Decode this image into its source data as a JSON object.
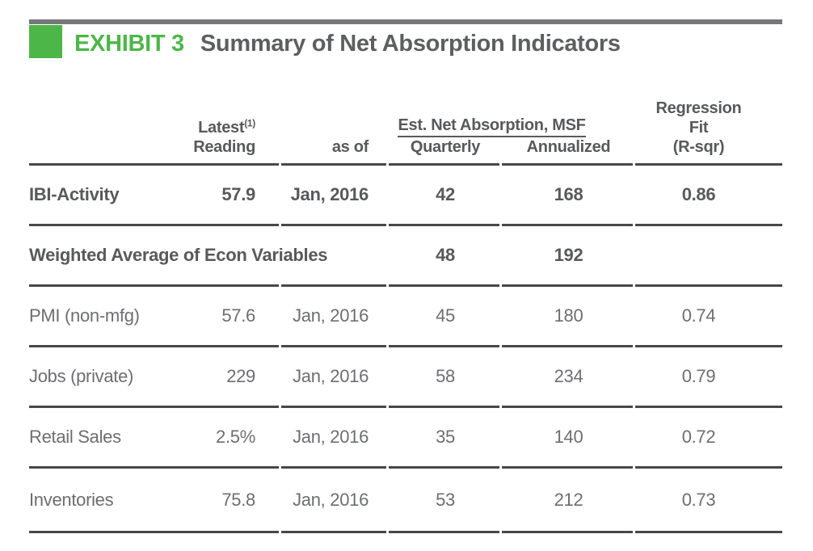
{
  "exhibit": {
    "label": "EXHIBIT 3",
    "title": "Summary of Net Absorption Indicators"
  },
  "colors": {
    "accent_green": "#4cb748",
    "title_gray": "#5d5e60",
    "bold_text_gray": "#58595b",
    "regular_text_gray": "#6d6e71",
    "rule_gray": "#48484a",
    "top_bar_gray": "#77787b"
  },
  "table": {
    "headers": {
      "latest_line1": "Latest",
      "latest_footnote": "(1)",
      "latest_line2": "Reading",
      "as_of": "as of",
      "est_group": "Est. Net Absorption, MSF",
      "quarterly": "Quarterly",
      "annualized": "Annualized",
      "regression_line1": "Regression",
      "regression_line2": "Fit",
      "regression_line3": "(R-sqr)"
    },
    "rows": [
      {
        "label": "IBI-Activity",
        "reading": "57.9",
        "as_of": "Jan, 2016",
        "quarterly": "42",
        "annualized": "168",
        "r_sqr": "0.86"
      },
      {
        "label": "Weighted Average of Econ Variables",
        "reading": "",
        "as_of": "",
        "quarterly": "48",
        "annualized": "192",
        "r_sqr": ""
      },
      {
        "label": "PMI (non-mfg)",
        "reading": "57.6",
        "as_of": "Jan, 2016",
        "quarterly": "45",
        "annualized": "180",
        "r_sqr": "0.74"
      },
      {
        "label": "Jobs (private)",
        "reading": "229",
        "as_of": "Jan, 2016",
        "quarterly": "58",
        "annualized": "234",
        "r_sqr": "0.79"
      },
      {
        "label": "Retail Sales",
        "reading": "2.5%",
        "as_of": "Jan, 2016",
        "quarterly": "35",
        "annualized": "140",
        "r_sqr": "0.72"
      },
      {
        "label": "Inventories",
        "reading": "75.8",
        "as_of": "Jan, 2016",
        "quarterly": "53",
        "annualized": "212",
        "r_sqr": "0.73"
      }
    ]
  },
  "chart_data": {
    "type": "table",
    "title": "EXHIBIT 3 Summary of Net Absorption Indicators",
    "columns": [
      "Indicator",
      "Latest (1) Reading",
      "as of",
      "Est. Net Absorption, MSF - Quarterly",
      "Est. Net Absorption, MSF - Annualized",
      "Regression Fit (R-sqr)"
    ],
    "rows": [
      [
        "IBI-Activity",
        "57.9",
        "Jan, 2016",
        "42",
        "168",
        "0.86"
      ],
      [
        "Weighted Average of Econ Variables",
        "",
        "",
        "48",
        "192",
        ""
      ],
      [
        "PMI (non-mfg)",
        "57.6",
        "Jan, 2016",
        "45",
        "180",
        "0.74"
      ],
      [
        "Jobs (private)",
        "229",
        "Jan, 2016",
        "58",
        "234",
        "0.79"
      ],
      [
        "Retail Sales",
        "2.5%",
        "Jan, 2016",
        "35",
        "140",
        "0.72"
      ],
      [
        "Inventories",
        "75.8",
        "Jan, 2016",
        "53",
        "212",
        "0.73"
      ]
    ]
  }
}
